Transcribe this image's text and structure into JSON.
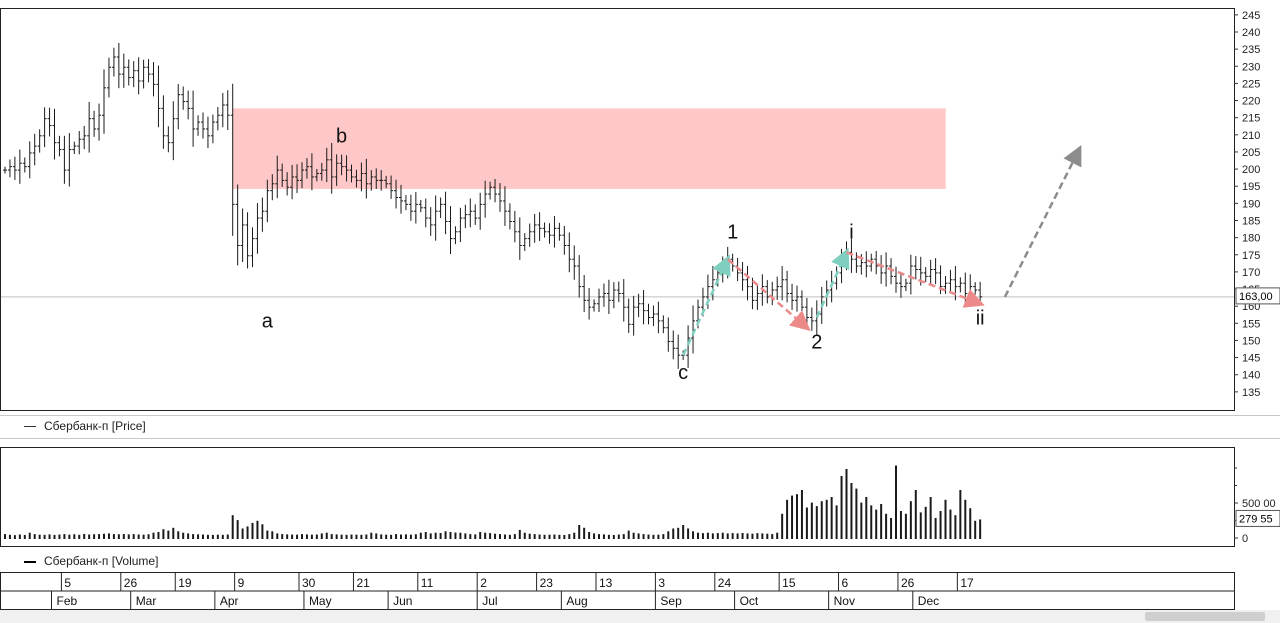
{
  "chart_data": [
    {
      "type": "ohlc",
      "instrument": "Сбербанк-п",
      "legend": "Сбербанк-п [Price]",
      "ylim": [
        130,
        247
      ],
      "y_ticks": [
        135,
        140,
        145,
        150,
        155,
        160,
        165,
        170,
        175,
        180,
        185,
        190,
        195,
        200,
        205,
        210,
        215,
        220,
        225,
        230,
        235,
        240,
        245
      ],
      "last_price_label": "163,00",
      "last_price": 163,
      "resistance_zone": {
        "low": 194.5,
        "high": 218
      },
      "wave_labels": [
        {
          "text": "a",
          "x": 53,
          "y": 154
        },
        {
          "text": "b",
          "x": 68,
          "y": 208
        },
        {
          "text": "c",
          "x": 137,
          "y": 139
        },
        {
          "text": "1",
          "x": 147,
          "y": 180
        },
        {
          "text": "2",
          "x": 164,
          "y": 148
        },
        {
          "text": "i",
          "x": 171,
          "y": 180
        },
        {
          "text": "ii",
          "x": 197,
          "y": 155
        }
      ],
      "arrows": [
        {
          "from": [
            137,
            146
          ],
          "to": [
            146,
            174
          ],
          "color": "#7ecfc0"
        },
        {
          "from": [
            146,
            174
          ],
          "to": [
            162,
            154
          ],
          "color": "#ec8a8a"
        },
        {
          "from": [
            164,
            157
          ],
          "to": [
            170,
            176
          ],
          "color": "#7ecfc0"
        },
        {
          "from": [
            170,
            176
          ],
          "to": [
            197,
            161
          ],
          "color": "#ec8a8a"
        },
        {
          "from": [
            202,
            163
          ],
          "to": [
            217,
            206
          ],
          "color": "#8c8c8c"
        }
      ]
    },
    {
      "type": "bar",
      "instrument": "Сбербанк-п",
      "legend": "Сбербанк-п [Volume]",
      "ylim": [
        -100000,
        1300000
      ],
      "y_ticks": [
        {
          "value": 0,
          "label": "0"
        },
        {
          "value": 500000,
          "label": "500 00"
        }
      ],
      "last_volume_label": "279 55",
      "last_volume": 279550
    }
  ],
  "time_axis": {
    "days": [
      {
        "label": "5",
        "x": 12
      },
      {
        "label": "26",
        "x": 24
      },
      {
        "label": "19",
        "x": 35
      },
      {
        "label": "9",
        "x": 47
      },
      {
        "label": "30",
        "x": 60
      },
      {
        "label": "21",
        "x": 71
      },
      {
        "label": "11",
        "x": 84
      },
      {
        "label": "2",
        "x": 96
      },
      {
        "label": "23",
        "x": 108
      },
      {
        "label": "13",
        "x": 120
      },
      {
        "label": "3",
        "x": 132
      },
      {
        "label": "24",
        "x": 144
      },
      {
        "label": "15",
        "x": 157
      },
      {
        "label": "6",
        "x": 169
      },
      {
        "label": "26",
        "x": 181
      },
      {
        "label": "17",
        "x": 193
      }
    ],
    "months": [
      {
        "label": "Feb",
        "x": 10
      },
      {
        "label": "Mar",
        "x": 26
      },
      {
        "label": "Apr",
        "x": 43
      },
      {
        "label": "May",
        "x": 61
      },
      {
        "label": "Jun",
        "x": 78
      },
      {
        "label": "Jul",
        "x": 96
      },
      {
        "label": "Aug",
        "x": 113
      },
      {
        "label": "Sep",
        "x": 132
      },
      {
        "label": "Oct",
        "x": 148
      },
      {
        "label": "Nov",
        "x": 167
      },
      {
        "label": "Dec",
        "x": 184
      }
    ]
  },
  "price_series": [
    [
      0,
      200
    ],
    [
      1,
      201
    ],
    [
      2,
      200
    ],
    [
      3,
      202
    ],
    [
      4,
      201
    ],
    [
      5,
      205
    ],
    [
      6,
      207
    ],
    [
      7,
      210
    ],
    [
      8,
      215
    ],
    [
      9,
      213
    ],
    [
      10,
      208
    ],
    [
      11,
      206
    ],
    [
      12,
      200
    ],
    [
      13,
      206
    ],
    [
      14,
      207
    ],
    [
      15,
      209
    ],
    [
      16,
      210
    ],
    [
      17,
      215
    ],
    [
      18,
      212
    ],
    [
      19,
      216
    ],
    [
      20,
      224
    ],
    [
      21,
      230
    ],
    [
      22,
      233
    ],
    [
      23,
      228
    ],
    [
      24,
      230
    ],
    [
      25,
      227
    ],
    [
      26,
      229
    ],
    [
      27,
      226
    ],
    [
      28,
      230
    ],
    [
      29,
      228
    ],
    [
      30,
      225
    ],
    [
      31,
      218
    ],
    [
      32,
      210
    ],
    [
      33,
      208
    ],
    [
      34,
      215
    ],
    [
      35,
      222
    ],
    [
      36,
      220
    ],
    [
      37,
      218
    ],
    [
      38,
      212
    ],
    [
      39,
      214
    ],
    [
      40,
      212
    ],
    [
      41,
      210
    ],
    [
      42,
      214
    ],
    [
      43,
      216
    ],
    [
      44,
      219
    ],
    [
      45,
      216
    ],
    [
      46,
      190
    ],
    [
      47,
      178
    ],
    [
      48,
      184
    ],
    [
      49,
      175
    ],
    [
      50,
      180
    ],
    [
      51,
      186
    ],
    [
      52,
      188
    ],
    [
      53,
      194
    ],
    [
      54,
      196
    ],
    [
      55,
      200
    ],
    [
      56,
      197
    ],
    [
      57,
      195
    ],
    [
      58,
      198
    ],
    [
      59,
      197
    ],
    [
      60,
      200
    ],
    [
      61,
      201
    ],
    [
      62,
      198
    ],
    [
      63,
      199
    ],
    [
      64,
      200
    ],
    [
      65,
      203
    ],
    [
      66,
      198
    ],
    [
      67,
      202
    ],
    [
      68,
      201
    ],
    [
      69,
      200
    ],
    [
      70,
      198
    ],
    [
      71,
      197
    ],
    [
      72,
      199
    ],
    [
      73,
      196
    ],
    [
      74,
      198
    ],
    [
      75,
      197
    ],
    [
      76,
      197
    ],
    [
      77,
      196
    ],
    [
      78,
      194
    ],
    [
      79,
      192
    ],
    [
      80,
      191
    ],
    [
      81,
      190
    ],
    [
      82,
      188
    ],
    [
      83,
      190
    ],
    [
      84,
      189
    ],
    [
      85,
      186
    ],
    [
      86,
      184
    ],
    [
      87,
      188
    ],
    [
      88,
      190
    ],
    [
      89,
      185
    ],
    [
      90,
      180
    ],
    [
      91,
      182
    ],
    [
      92,
      186
    ],
    [
      93,
      187
    ],
    [
      94,
      188
    ],
    [
      95,
      186
    ],
    [
      96,
      190
    ],
    [
      97,
      193
    ],
    [
      98,
      195
    ],
    [
      99,
      193
    ],
    [
      100,
      191
    ],
    [
      101,
      188
    ],
    [
      102,
      185
    ],
    [
      103,
      182
    ],
    [
      104,
      178
    ],
    [
      105,
      180
    ],
    [
      106,
      182
    ],
    [
      107,
      184
    ],
    [
      108,
      183
    ],
    [
      109,
      182
    ],
    [
      110,
      181
    ],
    [
      111,
      183
    ],
    [
      112,
      181
    ],
    [
      113,
      178
    ],
    [
      114,
      174
    ],
    [
      115,
      172
    ],
    [
      116,
      166
    ],
    [
      117,
      162
    ],
    [
      118,
      160
    ],
    [
      119,
      161
    ],
    [
      120,
      163
    ],
    [
      121,
      164
    ],
    [
      122,
      162
    ],
    [
      123,
      165
    ],
    [
      124,
      164
    ],
    [
      125,
      160
    ],
    [
      126,
      155
    ],
    [
      127,
      160
    ],
    [
      128,
      161
    ],
    [
      129,
      159
    ],
    [
      130,
      157
    ],
    [
      131,
      158
    ],
    [
      132,
      156
    ],
    [
      133,
      154
    ],
    [
      134,
      150
    ],
    [
      135,
      148
    ],
    [
      136,
      146
    ],
    [
      137,
      146
    ],
    [
      138,
      151
    ],
    [
      139,
      156
    ],
    [
      140,
      160
    ],
    [
      141,
      163
    ],
    [
      142,
      166
    ],
    [
      143,
      168
    ],
    [
      144,
      170
    ],
    [
      145,
      172
    ],
    [
      146,
      174
    ],
    [
      147,
      172
    ],
    [
      148,
      170
    ],
    [
      149,
      168
    ],
    [
      150,
      166
    ],
    [
      151,
      162
    ],
    [
      152,
      164
    ],
    [
      153,
      166
    ],
    [
      154,
      163
    ],
    [
      155,
      165
    ],
    [
      156,
      166
    ],
    [
      157,
      168
    ],
    [
      158,
      164
    ],
    [
      159,
      162
    ],
    [
      160,
      163
    ],
    [
      161,
      160
    ],
    [
      162,
      157
    ],
    [
      163,
      156
    ],
    [
      164,
      158
    ],
    [
      165,
      163
    ],
    [
      166,
      165
    ],
    [
      167,
      167
    ],
    [
      168,
      170
    ],
    [
      169,
      174
    ],
    [
      170,
      176
    ],
    [
      171,
      174
    ],
    [
      172,
      172
    ],
    [
      173,
      173
    ],
    [
      174,
      172
    ],
    [
      175,
      174
    ],
    [
      176,
      172
    ],
    [
      177,
      170
    ],
    [
      178,
      172
    ],
    [
      179,
      169
    ],
    [
      180,
      167
    ],
    [
      181,
      166
    ],
    [
      182,
      167
    ],
    [
      183,
      172
    ],
    [
      184,
      171
    ],
    [
      185,
      170
    ],
    [
      186,
      169
    ],
    [
      187,
      171
    ],
    [
      188,
      170
    ],
    [
      189,
      166
    ],
    [
      190,
      167
    ],
    [
      191,
      168
    ],
    [
      192,
      166
    ],
    [
      193,
      167
    ],
    [
      194,
      164
    ],
    [
      195,
      166
    ],
    [
      196,
      165
    ],
    [
      197,
      163
    ]
  ],
  "volume_series": [
    [
      0,
      70000
    ],
    [
      1,
      60000
    ],
    [
      2,
      55000
    ],
    [
      3,
      65000
    ],
    [
      4,
      58000
    ],
    [
      5,
      90000
    ],
    [
      6,
      70000
    ],
    [
      7,
      62000
    ],
    [
      8,
      60000
    ],
    [
      9,
      66000
    ],
    [
      10,
      58000
    ],
    [
      11,
      64000
    ],
    [
      12,
      70000
    ],
    [
      13,
      62000
    ],
    [
      14,
      68000
    ],
    [
      15,
      60000
    ],
    [
      16,
      72000
    ],
    [
      17,
      64000
    ],
    [
      18,
      68000
    ],
    [
      19,
      70000
    ],
    [
      20,
      75000
    ],
    [
      21,
      80000
    ],
    [
      22,
      70000
    ],
    [
      23,
      68000
    ],
    [
      24,
      72000
    ],
    [
      25,
      66000
    ],
    [
      26,
      70000
    ],
    [
      27,
      64000
    ],
    [
      28,
      62000
    ],
    [
      29,
      68000
    ],
    [
      30,
      90000
    ],
    [
      31,
      100000
    ],
    [
      32,
      140000
    ],
    [
      33,
      120000
    ],
    [
      34,
      160000
    ],
    [
      35,
      110000
    ],
    [
      36,
      90000
    ],
    [
      37,
      80000
    ],
    [
      38,
      70000
    ],
    [
      39,
      66000
    ],
    [
      40,
      64000
    ],
    [
      41,
      60000
    ],
    [
      42,
      58000
    ],
    [
      43,
      62000
    ],
    [
      44,
      60000
    ],
    [
      45,
      64000
    ],
    [
      46,
      340000
    ],
    [
      47,
      270000
    ],
    [
      48,
      150000
    ],
    [
      49,
      180000
    ],
    [
      50,
      230000
    ],
    [
      51,
      260000
    ],
    [
      52,
      210000
    ],
    [
      53,
      120000
    ],
    [
      54,
      110000
    ],
    [
      55,
      80000
    ],
    [
      56,
      70000
    ],
    [
      57,
      66000
    ],
    [
      58,
      64000
    ],
    [
      59,
      62000
    ],
    [
      60,
      70000
    ],
    [
      61,
      66000
    ],
    [
      62,
      62000
    ],
    [
      63,
      64000
    ],
    [
      64,
      80000
    ],
    [
      65,
      90000
    ],
    [
      66,
      70000
    ],
    [
      67,
      66000
    ],
    [
      68,
      62000
    ],
    [
      69,
      60000
    ],
    [
      70,
      64000
    ],
    [
      71,
      62000
    ],
    [
      72,
      60000
    ],
    [
      73,
      64000
    ],
    [
      74,
      90000
    ],
    [
      75,
      80000
    ],
    [
      76,
      66000
    ],
    [
      77,
      62000
    ],
    [
      78,
      60000
    ],
    [
      79,
      70000
    ],
    [
      80,
      64000
    ],
    [
      81,
      66000
    ],
    [
      82,
      62000
    ],
    [
      83,
      68000
    ],
    [
      84,
      90000
    ],
    [
      85,
      100000
    ],
    [
      86,
      80000
    ],
    [
      87,
      90000
    ],
    [
      88,
      86000
    ],
    [
      89,
      110000
    ],
    [
      90,
      100000
    ],
    [
      91,
      92000
    ],
    [
      92,
      90000
    ],
    [
      93,
      80000
    ],
    [
      94,
      70000
    ],
    [
      95,
      66000
    ],
    [
      96,
      100000
    ],
    [
      97,
      90000
    ],
    [
      98,
      84000
    ],
    [
      99,
      76000
    ],
    [
      100,
      70000
    ],
    [
      101,
      64000
    ],
    [
      102,
      60000
    ],
    [
      103,
      70000
    ],
    [
      104,
      130000
    ],
    [
      105,
      90000
    ],
    [
      106,
      76000
    ],
    [
      107,
      70000
    ],
    [
      108,
      64000
    ],
    [
      109,
      60000
    ],
    [
      110,
      62000
    ],
    [
      111,
      64000
    ],
    [
      112,
      60000
    ],
    [
      113,
      58000
    ],
    [
      114,
      70000
    ],
    [
      115,
      90000
    ],
    [
      116,
      200000
    ],
    [
      117,
      160000
    ],
    [
      118,
      100000
    ],
    [
      119,
      80000
    ],
    [
      120,
      70000
    ],
    [
      121,
      66000
    ],
    [
      122,
      60000
    ],
    [
      123,
      58000
    ],
    [
      124,
      64000
    ],
    [
      125,
      70000
    ],
    [
      126,
      120000
    ],
    [
      127,
      90000
    ],
    [
      128,
      80000
    ],
    [
      129,
      70000
    ],
    [
      130,
      64000
    ],
    [
      131,
      60000
    ],
    [
      132,
      62000
    ],
    [
      133,
      70000
    ],
    [
      134,
      110000
    ],
    [
      135,
      150000
    ],
    [
      136,
      160000
    ],
    [
      137,
      200000
    ],
    [
      138,
      150000
    ],
    [
      139,
      110000
    ],
    [
      140,
      90000
    ],
    [
      141,
      84000
    ],
    [
      142,
      90000
    ],
    [
      143,
      80000
    ],
    [
      144,
      84000
    ],
    [
      145,
      90000
    ],
    [
      146,
      80000
    ],
    [
      147,
      84000
    ],
    [
      148,
      80000
    ],
    [
      149,
      86000
    ],
    [
      150,
      80000
    ],
    [
      151,
      76000
    ],
    [
      152,
      84000
    ],
    [
      153,
      80000
    ],
    [
      154,
      76000
    ],
    [
      155,
      70000
    ],
    [
      156,
      90000
    ],
    [
      157,
      360000
    ],
    [
      158,
      560000
    ],
    [
      159,
      620000
    ],
    [
      160,
      640000
    ],
    [
      161,
      700000
    ],
    [
      162,
      450000
    ],
    [
      163,
      520000
    ],
    [
      164,
      470000
    ],
    [
      165,
      540000
    ],
    [
      166,
      560000
    ],
    [
      167,
      600000
    ],
    [
      168,
      480000
    ],
    [
      169,
      900000
    ],
    [
      170,
      1000000
    ],
    [
      171,
      800000
    ],
    [
      172,
      720000
    ],
    [
      173,
      520000
    ],
    [
      174,
      600000
    ],
    [
      175,
      480000
    ],
    [
      176,
      420000
    ],
    [
      177,
      500000
    ],
    [
      178,
      360000
    ],
    [
      179,
      300000
    ],
    [
      180,
      1050000
    ],
    [
      181,
      400000
    ],
    [
      182,
      360000
    ],
    [
      183,
      540000
    ],
    [
      184,
      700000
    ],
    [
      185,
      380000
    ],
    [
      186,
      460000
    ],
    [
      187,
      600000
    ],
    [
      188,
      300000
    ],
    [
      189,
      400000
    ],
    [
      190,
      560000
    ],
    [
      191,
      420000
    ],
    [
      192,
      340000
    ],
    [
      193,
      700000
    ],
    [
      194,
      560000
    ],
    [
      195,
      440000
    ],
    [
      196,
      260000
    ],
    [
      197,
      279550
    ]
  ],
  "colors": {
    "bars": "#1a1a1a",
    "zone": "#ffc8c8",
    "last_price_line": "#bfbfbf",
    "frame": "#222222"
  }
}
